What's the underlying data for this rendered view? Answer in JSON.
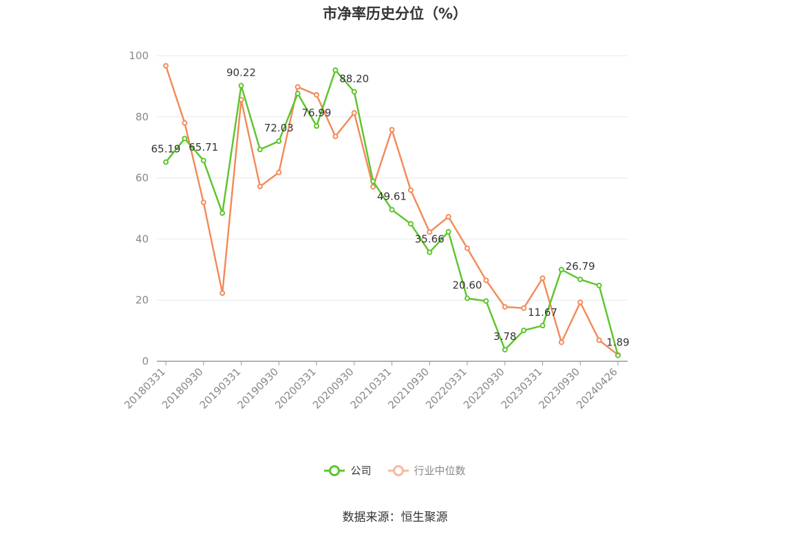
{
  "title": "市净率历史分位（%）",
  "source_text": "数据来源：恒生聚源",
  "colors": {
    "company": "#5dc52b",
    "industry": "#f28b5b",
    "grid": "#e6e8ee",
    "axis": "#999999"
  },
  "legend": [
    {
      "label": "公司",
      "series": 0
    },
    {
      "label": "行业中位数",
      "series": 1
    }
  ],
  "chart_data": {
    "type": "line",
    "x": [
      "20180331",
      "20180630",
      "20180930",
      "20181231",
      "20190331",
      "20190630",
      "20190930",
      "20191231",
      "20200331",
      "20200630",
      "20200930",
      "20201231",
      "20210331",
      "20210630",
      "20210930",
      "20211231",
      "20220331",
      "20220630",
      "20220930",
      "20221231",
      "20230331",
      "20230630",
      "20230930",
      "20231231",
      "20240426"
    ],
    "x_tick_labels": [
      "20180331",
      "20180930",
      "20190331",
      "20190930",
      "20200331",
      "20200930",
      "20210331",
      "20210930",
      "20220331",
      "20220930",
      "20230331",
      "20230930",
      "20240426"
    ],
    "y_ticks": [
      0,
      20,
      40,
      60,
      80,
      100
    ],
    "ylim": [
      0,
      100
    ],
    "grid": true,
    "legend_position": "bottom",
    "series": [
      {
        "name": "公司",
        "values": [
          65.19,
          72.9,
          65.71,
          48.5,
          90.22,
          69.3,
          72.03,
          87.6,
          76.99,
          95.3,
          88.2,
          58.9,
          49.61,
          45.0,
          35.66,
          42.4,
          20.6,
          19.7,
          3.78,
          10.1,
          11.67,
          30.0,
          26.79,
          24.8,
          1.89
        ]
      },
      {
        "name": "行业中位数",
        "values": [
          96.7,
          78.0,
          52.0,
          22.3,
          85.6,
          57.2,
          61.8,
          89.8,
          87.2,
          73.6,
          81.3,
          57.1,
          75.8,
          56.0,
          42.3,
          47.3,
          37.0,
          26.5,
          17.8,
          17.4,
          27.2,
          6.2,
          19.3,
          6.9,
          2.1
        ]
      }
    ],
    "data_labels": [
      {
        "index": 0,
        "text": "65.19"
      },
      {
        "index": 2,
        "text": "65.71"
      },
      {
        "index": 4,
        "text": "90.22"
      },
      {
        "index": 6,
        "text": "72.03"
      },
      {
        "index": 8,
        "text": "76.99"
      },
      {
        "index": 10,
        "text": "88.20"
      },
      {
        "index": 12,
        "text": "49.61"
      },
      {
        "index": 14,
        "text": "35.66"
      },
      {
        "index": 16,
        "text": "20.60"
      },
      {
        "index": 18,
        "text": "3.78"
      },
      {
        "index": 20,
        "text": "11.67"
      },
      {
        "index": 22,
        "text": "26.79"
      },
      {
        "index": 24,
        "text": "1.89"
      }
    ]
  }
}
